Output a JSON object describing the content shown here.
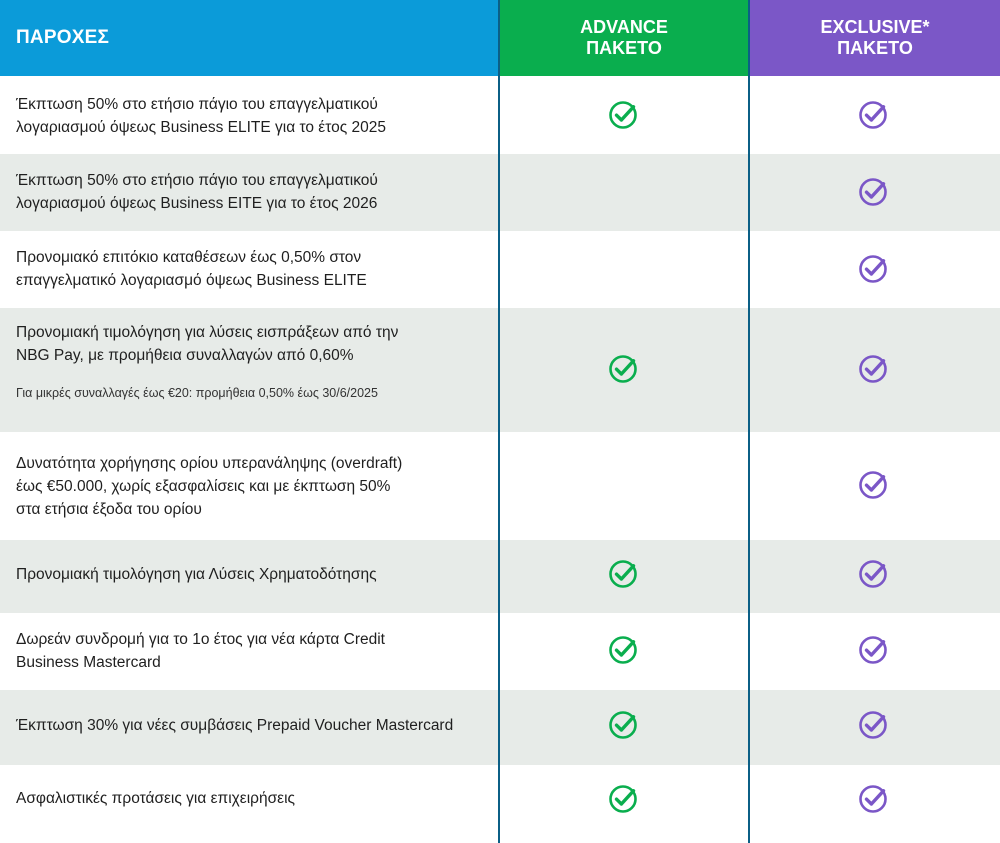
{
  "header": {
    "benefits_label": "ΠΑΡΟΧΕΣ",
    "advance_line1": "ADVANCE",
    "advance_line2": "ΠΑΚΕΤΟ",
    "exclusive_line1": "EXCLUSIVE*",
    "exclusive_line2": "ΠΑΚΕΤΟ"
  },
  "colors": {
    "benefits_header": "#0b9bd9",
    "advance": "#0aae4e",
    "exclusive": "#7b57c7",
    "row_shade": "#e7ebe8"
  },
  "rows": [
    {
      "line1": "Έκπτωση 50% στο ετήσιο πάγιο του επαγγελματικού",
      "line2": "λογαριασμού όψεως Business ELITE για το έτος 2025",
      "advance": true,
      "exclusive": true
    },
    {
      "line1": "Έκπτωση 50% στο ετήσιο πάγιο του επαγγελματικού",
      "line2": "λογαριασμού όψεως Business EITE για το έτος 2026",
      "advance": false,
      "exclusive": true
    },
    {
      "line1": "Προνομιακό επιτόκιο καταθέσεων έως 0,50% στον",
      "line2": "επαγγελματικό λογαριασμό όψεως Business ELITE",
      "advance": false,
      "exclusive": true
    },
    {
      "line1": "Προνομιακή τιμολόγηση για λύσεις εισπράξεων από την",
      "line2": "NBG Pay, με προμήθεια συναλλαγών από 0,60%",
      "note": "Για μικρές συναλλαγές έως €20: προμήθεια 0,50% έως 30/6/2025",
      "advance": true,
      "exclusive": true
    },
    {
      "line1": "Δυνατότητα χορήγησης ορίου υπερανάληψης (overdraft)",
      "line2": "έως €50.000, χωρίς εξασφαλίσεις και με έκπτωση 50%",
      "line3": "στα ετήσια έξοδα του ορίου",
      "advance": false,
      "exclusive": true
    },
    {
      "line1": "Προνομιακή τιμολόγηση για Λύσεις Χρηματοδότησης",
      "advance": true,
      "exclusive": true
    },
    {
      "line1": "Δωρεάν συνδρομή  για το 1ο έτος για νέα κάρτα Credit",
      "line2": "Business Mastercard",
      "advance": true,
      "exclusive": true
    },
    {
      "line1": "Έκπτωση 30% για νέες συμβάσεις Prepaid Voucher Mastercard",
      "advance": true,
      "exclusive": true
    },
    {
      "line1": "Ασφαλιστικές προτάσεις για επιχειρήσεις",
      "advance": true,
      "exclusive": true
    }
  ]
}
